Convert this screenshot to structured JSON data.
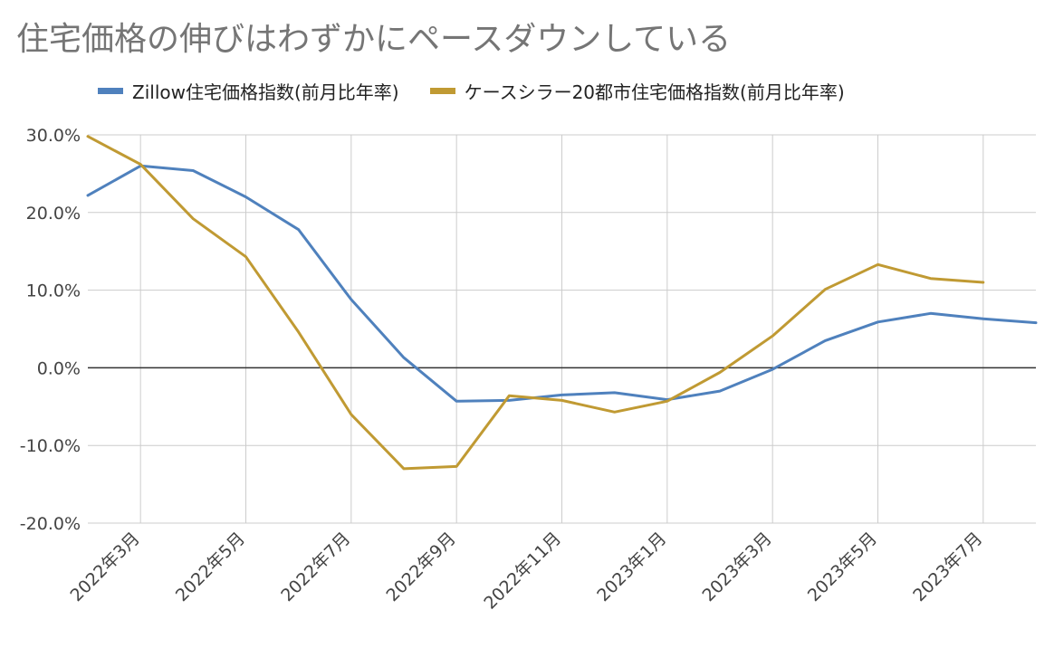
{
  "chart_data": {
    "type": "line",
    "title": "住宅価格の伸びはわずかにペースダウンしている",
    "x": [
      "2022-02",
      "2022-03",
      "2022-04",
      "2022-05",
      "2022-06",
      "2022-07",
      "2022-08",
      "2022-09",
      "2022-10",
      "2022-11",
      "2022-12",
      "2023-01",
      "2023-02",
      "2023-03",
      "2023-04",
      "2023-05",
      "2023-06",
      "2023-07",
      "2023-08"
    ],
    "x_tick_labels": [
      "2022年3月",
      "2022年5月",
      "2022年7月",
      "2022年9月",
      "2022年11月",
      "2023年1月",
      "2023年3月",
      "2023年5月",
      "2023年7月"
    ],
    "x_tick_values": [
      "2022-03",
      "2022-05",
      "2022-07",
      "2022-09",
      "2022-11",
      "2023-01",
      "2023-03",
      "2023-05",
      "2023-07"
    ],
    "y_tick_labels": [
      "30.0%",
      "20.0%",
      "10.0%",
      "0.0%",
      "-10.0%",
      "-20.0%"
    ],
    "y_tick_values": [
      30,
      20,
      10,
      0,
      -10,
      -20
    ],
    "ylim": [
      -20,
      30
    ],
    "y_unit": "%",
    "grid": true,
    "legend_position": "top",
    "series": [
      {
        "name": "Zillow住宅価格指数(前月比年率)",
        "color": "#4f81bd",
        "values": [
          22.2,
          26.0,
          25.4,
          22.0,
          17.8,
          8.8,
          1.3,
          -4.3,
          -4.2,
          -3.5,
          -3.2,
          -4.1,
          -3.0,
          -0.2,
          3.5,
          5.9,
          7.0,
          6.3,
          5.8
        ]
      },
      {
        "name": "ケースシラー20都市住宅価格指数(前月比年率)",
        "color": "#c09a33",
        "values": [
          29.8,
          26.2,
          19.2,
          14.3,
          4.6,
          -6.0,
          -13.0,
          -12.7,
          -3.6,
          -4.2,
          -5.7,
          -4.3,
          -0.6,
          4.1,
          10.1,
          13.3,
          11.5,
          11.0,
          null
        ]
      }
    ]
  }
}
